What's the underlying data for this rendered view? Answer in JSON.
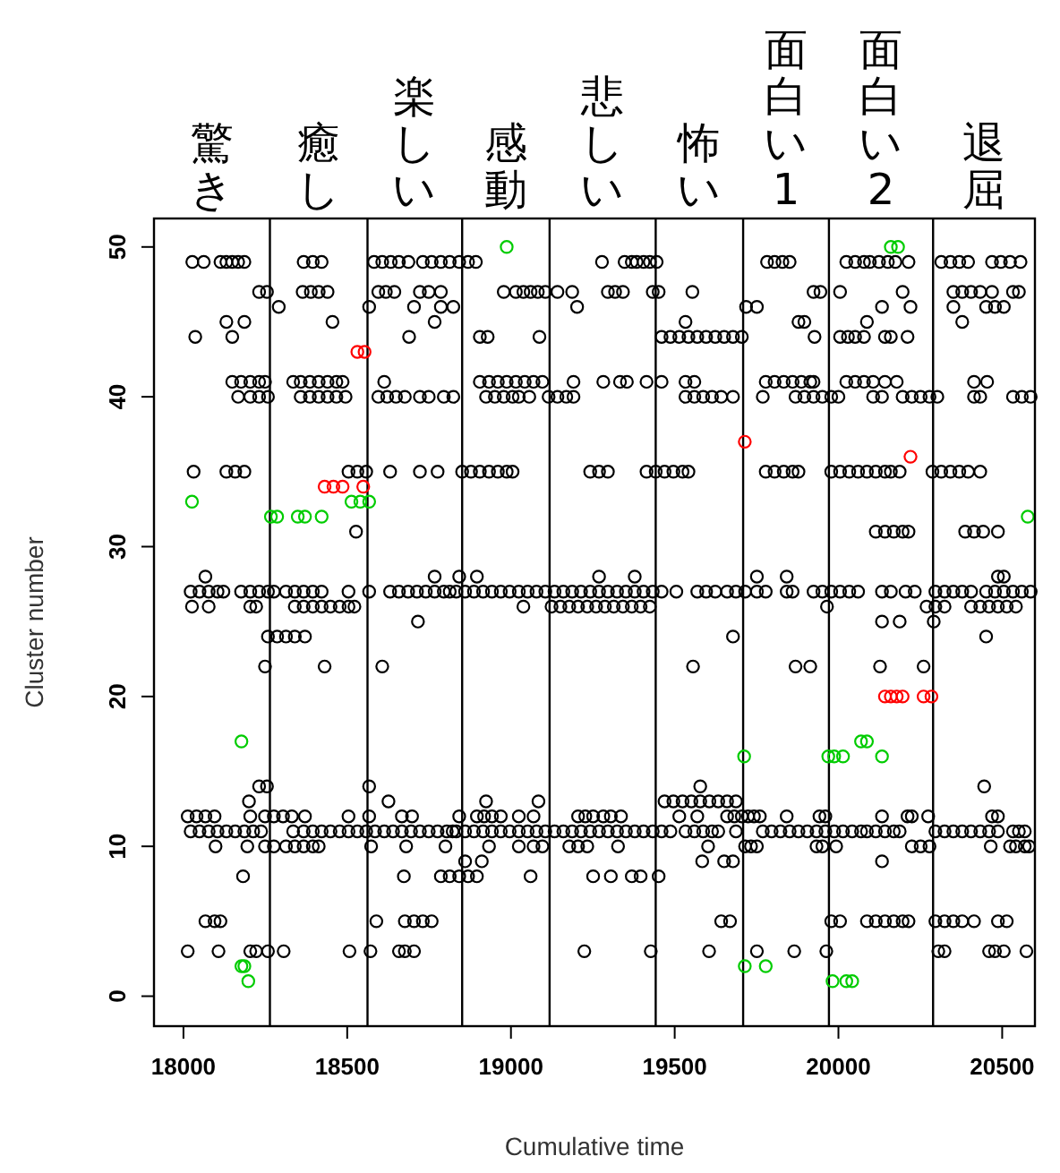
{
  "chart_data": {
    "type": "scatter",
    "xlabel": "Cumulative time",
    "ylabel": "Cluster number",
    "xlim": [
      17910,
      20600
    ],
    "ylim": [
      -2,
      51.9
    ],
    "xticks": [
      18000,
      18500,
      19000,
      19500,
      20000,
      20500
    ],
    "yticks": [
      0,
      10,
      20,
      30,
      40,
      50
    ],
    "marker": "circle",
    "ref_lines": [
      {
        "axis": "x",
        "value": 18264
      },
      {
        "axis": "x",
        "value": 18562
      },
      {
        "axis": "x",
        "value": 18851
      },
      {
        "axis": "x",
        "value": 19118
      },
      {
        "axis": "x",
        "value": 19442
      },
      {
        "axis": "x",
        "value": 19709
      },
      {
        "axis": "x",
        "value": 19971
      },
      {
        "axis": "x",
        "value": 20289
      }
    ],
    "annotations": [
      "驚き",
      "癒し",
      "楽しい",
      "感動",
      "悲しい",
      "怖い",
      "面白い1",
      "面白い2",
      "退屈"
    ],
    "series": [
      {
        "color": "#000000",
        "x": [
          18027,
          18062,
          18113,
          18131,
          18149,
          18167,
          18186,
          18367,
          18395,
          18422,
          18582,
          18607,
          18633,
          18658,
          18687,
          18731,
          18758,
          18786,
          18813,
          18842,
          18869,
          18893,
          19278,
          19347,
          19369,
          19384,
          19405,
          19424,
          19445,
          19782,
          19805,
          19829,
          19851,
          20024,
          20051,
          20078,
          20096,
          20124,
          20151,
          20174,
          20214,
          20314,
          20342,
          20369,
          20396,
          20469,
          20496,
          20524,
          20556,
          18231,
          18255,
          18364,
          18389,
          18413,
          18440,
          18595,
          18618,
          18644,
          18722,
          18749,
          18786,
          18978,
          19015,
          19038,
          19060,
          19082,
          19105,
          19142,
          19187,
          19296,
          19318,
          19342,
          19433,
          19451,
          19554,
          19924,
          19945,
          20005,
          20196,
          20351,
          20378,
          20405,
          20433,
          20469,
          20533,
          20551,
          18291,
          18567,
          18704,
          18786,
          18824,
          19202,
          19718,
          19751,
          20133,
          20220,
          20351,
          20451,
          20478,
          20505,
          18131,
          18186,
          18455,
          18767,
          19533,
          19878,
          19896,
          20087,
          20378,
          18036,
          18149,
          18689,
          18905,
          18929,
          19087,
          19460,
          19487,
          19514,
          19542,
          19569,
          19596,
          19624,
          19651,
          19678,
          19705,
          19927,
          20005,
          20029,
          20051,
          20078,
          20142,
          20160,
          20211,
          18149,
          18176,
          18204,
          18231,
          18249,
          18335,
          18358,
          18386,
          18413,
          18440,
          18467,
          18486,
          18613,
          18905,
          18933,
          18960,
          18987,
          19015,
          19042,
          19069,
          19096,
          19191,
          19282,
          19333,
          19354,
          19414,
          19460,
          19533,
          19560,
          19778,
          19805,
          19833,
          19860,
          19887,
          19914,
          19924,
          20024,
          20051,
          20078,
          20106,
          20142,
          20178,
          20414,
          20454,
          18167,
          18204,
          18231,
          18258,
          18358,
          18386,
          18413,
          18440,
          18467,
          18495,
          18595,
          18622,
          18649,
          18676,
          18722,
          18749,
          18795,
          18824,
          18924,
          18951,
          18978,
          19005,
          19024,
          19056,
          19115,
          19142,
          19169,
          19191,
          19533,
          19560,
          19587,
          19614,
          19642,
          19678,
          19769,
          19869,
          19896,
          19924,
          19951,
          19978,
          20000,
          20106,
          20133,
          20196,
          20224,
          20251,
          20278,
          20302,
          20414,
          20433,
          20533,
          20560,
          20587,
          18031,
          18131,
          18158,
          18186,
          18504,
          18531,
          18558,
          18631,
          18722,
          18776,
          18851,
          18878,
          18905,
          18933,
          18960,
          18987,
          19005,
          19242,
          19269,
          19296,
          19414,
          19442,
          19469,
          19496,
          19524,
          19542,
          19778,
          19805,
          19833,
          19860,
          19878,
          19978,
          20005,
          20033,
          20060,
          20087,
          20114,
          20142,
          20160,
          20187,
          20287,
          20314,
          20342,
          20369,
          20396,
          20433,
          18527,
          20114,
          20142,
          20169,
          20196,
          20214,
          20387,
          20414,
          20442,
          20487,
          18067,
          18767,
          18842,
          18896,
          19269,
          19378,
          19751,
          19842,
          20487,
          20505,
          18022,
          18049,
          18077,
          18104,
          18122,
          18176,
          18204,
          18231,
          18258,
          18276,
          18313,
          18340,
          18367,
          18395,
          18422,
          18504,
          18567,
          18631,
          18658,
          18686,
          18713,
          18740,
          18767,
          18795,
          18813,
          18833,
          18860,
          18887,
          18915,
          18942,
          18969,
          18996,
          19024,
          19051,
          19078,
          19105,
          19133,
          19160,
          19187,
          19214,
          19242,
          19269,
          19296,
          19324,
          19351,
          19378,
          19405,
          19433,
          19460,
          19505,
          19569,
          19596,
          19624,
          19660,
          19687,
          19715,
          19751,
          19778,
          19842,
          19860,
          19924,
          19951,
          19978,
          20005,
          20033,
          20060,
          20133,
          20160,
          20205,
          20233,
          20296,
          20324,
          20351,
          20378,
          20405,
          20451,
          20478,
          20505,
          20533,
          20560,
          20587,
          18026,
          18077,
          18204,
          18222,
          18340,
          18367,
          18395,
          18422,
          18449,
          18477,
          18504,
          18522,
          19038,
          19124,
          19151,
          19178,
          19205,
          19233,
          19260,
          19287,
          19314,
          19342,
          19369,
          19396,
          19424,
          19965,
          20269,
          20296,
          20324,
          20405,
          20433,
          20460,
          20487,
          20514,
          20542,
          18716,
          20133,
          20187,
          20291,
          18258,
          18286,
          18313,
          18340,
          18371,
          19678,
          20451,
          18249,
          18431,
          18607,
          19556,
          19869,
          19914,
          20127,
          20260,
          18231,
          18255,
          18567,
          19578,
          20445,
          18200,
          18626,
          18924,
          19084,
          19469,
          19496,
          19524,
          19551,
          19578,
          19606,
          19633,
          19660,
          19687,
          18013,
          18040,
          18067,
          18095,
          18204,
          18249,
          18276,
          18304,
          18331,
          18371,
          18504,
          18567,
          18667,
          18698,
          18842,
          18896,
          18918,
          18942,
          18969,
          19024,
          19069,
          19205,
          19227,
          19251,
          19282,
          19305,
          19336,
          19514,
          19569,
          19660,
          19682,
          19705,
          19724,
          19742,
          19760,
          19842,
          19942,
          19960,
          20133,
          20211,
          20224,
          20274,
          20469,
          20487,
          18022,
          18049,
          18077,
          18104,
          18131,
          18158,
          18186,
          18213,
          18237,
          18335,
          18367,
          18395,
          18422,
          18449,
          18477,
          18504,
          18531,
          18558,
          18585,
          18613,
          18640,
          18667,
          18695,
          18722,
          18749,
          18776,
          18804,
          18822,
          18833,
          18860,
          18887,
          18915,
          18942,
          18969,
          18996,
          19024,
          19051,
          19078,
          19105,
          19133,
          19160,
          19187,
          19214,
          19242,
          19269,
          19296,
          19324,
          19351,
          19378,
          19405,
          19433,
          19460,
          19487,
          19533,
          19560,
          19587,
          19614,
          19633,
          19687,
          19769,
          19796,
          19823,
          19851,
          19878,
          19905,
          19933,
          19960,
          19987,
          20014,
          20042,
          20069,
          20087,
          20114,
          20142,
          20169,
          20187,
          20296,
          20324,
          20351,
          20378,
          20405,
          20433,
          20460,
          20487,
          20533,
          20551,
          20569,
          18098,
          18195,
          18249,
          18276,
          18313,
          18340,
          18367,
          18395,
          18413,
          18573,
          18680,
          18800,
          18933,
          19024,
          19069,
          19096,
          19178,
          19205,
          19233,
          19327,
          19602,
          19715,
          19733,
          19751,
          19933,
          19951,
          19993,
          20224,
          20251,
          20278,
          20465,
          20524,
          20542,
          20569,
          20582,
          18860,
          18911,
          19584,
          19651,
          19678,
          20133,
          18182,
          18673,
          18786,
          18813,
          18842,
          18869,
          18896,
          19060,
          19251,
          19305,
          19369,
          19396,
          19451,
          18067,
          18095,
          18113,
          18589,
          18676,
          18704,
          18731,
          18758,
          19642,
          19669,
          19978,
          20005,
          20087,
          20114,
          20142,
          20169,
          20196,
          20214,
          20296,
          20324,
          20351,
          20378,
          20414,
          20487,
          20514,
          18013,
          18107,
          18204,
          18222,
          18258,
          18306,
          18507,
          18571,
          18658,
          18676,
          18704,
          19224,
          19427,
          19605,
          19751,
          19865,
          19963,
          20305,
          20324,
          20460,
          20478,
          20505,
          20574
        ],
        "values": [
          49,
          49,
          49,
          49,
          49,
          49,
          49,
          49,
          49,
          49,
          49,
          49,
          49,
          49,
          49,
          49,
          49,
          49,
          49,
          49,
          49,
          49,
          49,
          49,
          49,
          49,
          49,
          49,
          49,
          49,
          49,
          49,
          49,
          49,
          49,
          49,
          49,
          49,
          49,
          49,
          49,
          49,
          49,
          49,
          49,
          49,
          49,
          49,
          49,
          47,
          47,
          47,
          47,
          47,
          47,
          47,
          47,
          47,
          47,
          47,
          47,
          47,
          47,
          47,
          47,
          47,
          47,
          47,
          47,
          47,
          47,
          47,
          47,
          47,
          47,
          47,
          47,
          47,
          47,
          47,
          47,
          47,
          47,
          47,
          47,
          47,
          46,
          46,
          46,
          46,
          46,
          46,
          46,
          46,
          46,
          46,
          46,
          46,
          46,
          46,
          45,
          45,
          45,
          45,
          45,
          45,
          45,
          45,
          45,
          44,
          44,
          44,
          44,
          44,
          44,
          44,
          44,
          44,
          44,
          44,
          44,
          44,
          44,
          44,
          44,
          44,
          44,
          44,
          44,
          44,
          44,
          44,
          44,
          41,
          41,
          41,
          41,
          41,
          41,
          41,
          41,
          41,
          41,
          41,
          41,
          41,
          41,
          41,
          41,
          41,
          41,
          41,
          41,
          41,
          41,
          41,
          41,
          41,
          41,
          41,
          41,
          41,
          41,
          41,
          41,
          41,
          41,
          41,
          41,
          41,
          41,
          41,
          41,
          41,
          41,
          41,
          41,
          40,
          40,
          40,
          40,
          40,
          40,
          40,
          40,
          40,
          40,
          40,
          40,
          40,
          40,
          40,
          40,
          40,
          40,
          40,
          40,
          40,
          40,
          40,
          40,
          40,
          40,
          40,
          40,
          40,
          40,
          40,
          40,
          40,
          40,
          40,
          40,
          40,
          40,
          40,
          40,
          40,
          40,
          40,
          40,
          40,
          40,
          40,
          40,
          40,
          40,
          40,
          40,
          40,
          35,
          35,
          35,
          35,
          35,
          35,
          35,
          35,
          35,
          35,
          35,
          35,
          35,
          35,
          35,
          35,
          35,
          35,
          35,
          35,
          35,
          35,
          35,
          35,
          35,
          35,
          35,
          35,
          35,
          35,
          35,
          35,
          35,
          35,
          35,
          35,
          35,
          35,
          35,
          35,
          35,
          35,
          35,
          35,
          35,
          35,
          31,
          31,
          31,
          31,
          31,
          31,
          31,
          31,
          31,
          31,
          28,
          28,
          28,
          28,
          28,
          28,
          28,
          28,
          28,
          28,
          27,
          27,
          27,
          27,
          27,
          27,
          27,
          27,
          27,
          27,
          27,
          27,
          27,
          27,
          27,
          27,
          27,
          27,
          27,
          27,
          27,
          27,
          27,
          27,
          27,
          27,
          27,
          27,
          27,
          27,
          27,
          27,
          27,
          27,
          27,
          27,
          27,
          27,
          27,
          27,
          27,
          27,
          27,
          27,
          27,
          27,
          27,
          27,
          27,
          27,
          27,
          27,
          27,
          27,
          27,
          27,
          27,
          27,
          27,
          27,
          27,
          27,
          27,
          27,
          27,
          27,
          27,
          27,
          27,
          27,
          27,
          27,
          27,
          27,
          27,
          27,
          27,
          27,
          27,
          27,
          27,
          26,
          26,
          26,
          26,
          26,
          26,
          26,
          26,
          26,
          26,
          26,
          26,
          26,
          26,
          26,
          26,
          26,
          26,
          26,
          26,
          26,
          26,
          26,
          26,
          26,
          26,
          26,
          26,
          26,
          26,
          26,
          26,
          26,
          26,
          26,
          25,
          25,
          25,
          25,
          24,
          24,
          24,
          24,
          24,
          24,
          24,
          22,
          22,
          22,
          22,
          22,
          22,
          22,
          22,
          14,
          14,
          14,
          14,
          14,
          13,
          13,
          13,
          13,
          13,
          13,
          13,
          13,
          13,
          13,
          13,
          13,
          13,
          12,
          12,
          12,
          12,
          12,
          12,
          12,
          12,
          12,
          12,
          12,
          12,
          12,
          12,
          12,
          12,
          12,
          12,
          12,
          12,
          12,
          12,
          12,
          12,
          12,
          12,
          12,
          12,
          12,
          12,
          12,
          12,
          12,
          12,
          12,
          12,
          12,
          12,
          12,
          12,
          12,
          12,
          12,
          12,
          11,
          11,
          11,
          11,
          11,
          11,
          11,
          11,
          11,
          11,
          11,
          11,
          11,
          11,
          11,
          11,
          11,
          11,
          11,
          11,
          11,
          11,
          11,
          11,
          11,
          11,
          11,
          11,
          11,
          11,
          11,
          11,
          11,
          11,
          11,
          11,
          11,
          11,
          11,
          11,
          11,
          11,
          11,
          11,
          11,
          11,
          11,
          11,
          11,
          11,
          11,
          11,
          11,
          11,
          11,
          11,
          11,
          11,
          11,
          11,
          11,
          11,
          11,
          11,
          11,
          11,
          11,
          11,
          11,
          11,
          11,
          11,
          11,
          11,
          11,
          11,
          11,
          11,
          11,
          11,
          11,
          11,
          11,
          11,
          11,
          11,
          11,
          10,
          10,
          10,
          10,
          10,
          10,
          10,
          10,
          10,
          10,
          10,
          10,
          10,
          10,
          10,
          10,
          10,
          10,
          10,
          10,
          10,
          10,
          10,
          10,
          10,
          10,
          10,
          10,
          10,
          10,
          10,
          10,
          10,
          10,
          10,
          9,
          9,
          9,
          9,
          9,
          9,
          8,
          8,
          8,
          8,
          8,
          8,
          8,
          8,
          8,
          8,
          8,
          8,
          8,
          5,
          5,
          5,
          5,
          5,
          5,
          5,
          5,
          5,
          5,
          5,
          5,
          5,
          5,
          5,
          5,
          5,
          5,
          5,
          5,
          5,
          5,
          5,
          5,
          5,
          3,
          3,
          3,
          3,
          3,
          3,
          3,
          3,
          3,
          3,
          3,
          3,
          3,
          3,
          3,
          3,
          3,
          3,
          3,
          3,
          3,
          3,
          3
        ]
      },
      {
        "color": "#ff0000",
        "x": [
          18531,
          18553,
          18431,
          18458,
          18486,
          18549,
          19714,
          20220,
          20142,
          20160,
          20178,
          20196,
          20260,
          20284
        ],
        "values": [
          43,
          43,
          34,
          34,
          34,
          34,
          37,
          36,
          20,
          20,
          20,
          20,
          20,
          20
        ]
      },
      {
        "color": "#00cc00",
        "x": [
          18987,
          20160,
          20182,
          18026,
          18513,
          18540,
          18567,
          18267,
          18286,
          18349,
          18371,
          18422,
          20578,
          18177,
          20069,
          20087,
          19712,
          19969,
          19987,
          20014,
          20133,
          18177,
          18186,
          19714,
          19778,
          18198,
          19982,
          20024,
          20042
        ],
        "values": [
          50,
          50,
          50,
          33,
          33,
          33,
          33,
          32,
          32,
          32,
          32,
          32,
          32,
          17,
          17,
          17,
          16,
          16,
          16,
          16,
          16,
          2,
          2,
          2,
          2,
          1,
          1,
          1,
          1
        ]
      }
    ]
  }
}
